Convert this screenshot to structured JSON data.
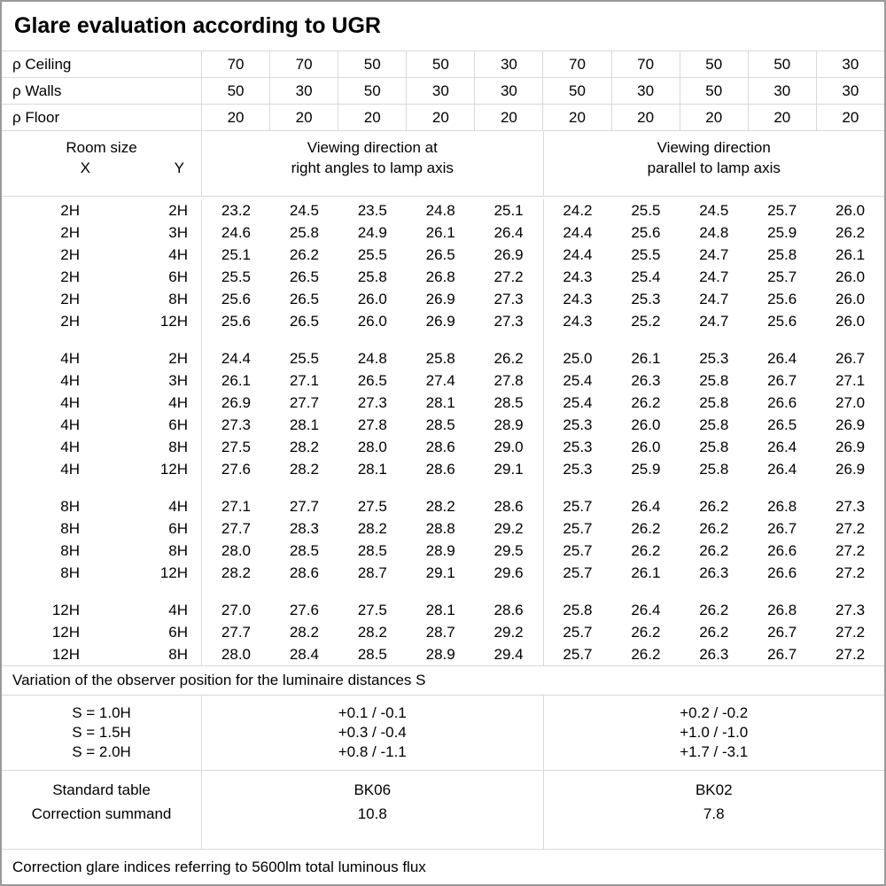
{
  "title": "Glare evaluation according to UGR",
  "colors": {
    "background": "#ffffff",
    "text": "#000000",
    "grid_line": "#d9d9d9",
    "frame": "#9a9a9a"
  },
  "reflectances": {
    "rows": [
      {
        "label": "ρ Ceiling",
        "values": [
          "70",
          "70",
          "50",
          "50",
          "30",
          "70",
          "70",
          "50",
          "50",
          "30"
        ]
      },
      {
        "label": "ρ Walls",
        "values": [
          "50",
          "30",
          "50",
          "30",
          "30",
          "50",
          "30",
          "50",
          "30",
          "30"
        ]
      },
      {
        "label": "ρ Floor",
        "values": [
          "20",
          "20",
          "20",
          "20",
          "20",
          "20",
          "20",
          "20",
          "20",
          "20"
        ]
      }
    ]
  },
  "header": {
    "room_size": "Room size",
    "x": "X",
    "y": "Y",
    "group1_line1": "Viewing direction at",
    "group1_line2": "right angles to lamp axis",
    "group2_line1": "Viewing direction",
    "group2_line2": "parallel to lamp axis"
  },
  "ugr_table": {
    "blocks": [
      {
        "rows": [
          {
            "x": "2H",
            "y": "2H",
            "v": [
              "23.2",
              "24.5",
              "23.5",
              "24.8",
              "25.1",
              "24.2",
              "25.5",
              "24.5",
              "25.7",
              "26.0"
            ]
          },
          {
            "x": "2H",
            "y": "3H",
            "v": [
              "24.6",
              "25.8",
              "24.9",
              "26.1",
              "26.4",
              "24.4",
              "25.6",
              "24.8",
              "25.9",
              "26.2"
            ]
          },
          {
            "x": "2H",
            "y": "4H",
            "v": [
              "25.1",
              "26.2",
              "25.5",
              "26.5",
              "26.9",
              "24.4",
              "25.5",
              "24.7",
              "25.8",
              "26.1"
            ]
          },
          {
            "x": "2H",
            "y": "6H",
            "v": [
              "25.5",
              "26.5",
              "25.8",
              "26.8",
              "27.2",
              "24.3",
              "25.4",
              "24.7",
              "25.7",
              "26.0"
            ]
          },
          {
            "x": "2H",
            "y": "8H",
            "v": [
              "25.6",
              "26.5",
              "26.0",
              "26.9",
              "27.3",
              "24.3",
              "25.3",
              "24.7",
              "25.6",
              "26.0"
            ]
          },
          {
            "x": "2H",
            "y": "12H",
            "v": [
              "25.6",
              "26.5",
              "26.0",
              "26.9",
              "27.3",
              "24.3",
              "25.2",
              "24.7",
              "25.6",
              "26.0"
            ]
          }
        ]
      },
      {
        "rows": [
          {
            "x": "4H",
            "y": "2H",
            "v": [
              "24.4",
              "25.5",
              "24.8",
              "25.8",
              "26.2",
              "25.0",
              "26.1",
              "25.3",
              "26.4",
              "26.7"
            ]
          },
          {
            "x": "4H",
            "y": "3H",
            "v": [
              "26.1",
              "27.1",
              "26.5",
              "27.4",
              "27.8",
              "25.4",
              "26.3",
              "25.8",
              "26.7",
              "27.1"
            ]
          },
          {
            "x": "4H",
            "y": "4H",
            "v": [
              "26.9",
              "27.7",
              "27.3",
              "28.1",
              "28.5",
              "25.4",
              "26.2",
              "25.8",
              "26.6",
              "27.0"
            ]
          },
          {
            "x": "4H",
            "y": "6H",
            "v": [
              "27.3",
              "28.1",
              "27.8",
              "28.5",
              "28.9",
              "25.3",
              "26.0",
              "25.8",
              "26.5",
              "26.9"
            ]
          },
          {
            "x": "4H",
            "y": "8H",
            "v": [
              "27.5",
              "28.2",
              "28.0",
              "28.6",
              "29.0",
              "25.3",
              "26.0",
              "25.8",
              "26.4",
              "26.9"
            ]
          },
          {
            "x": "4H",
            "y": "12H",
            "v": [
              "27.6",
              "28.2",
              "28.1",
              "28.6",
              "29.1",
              "25.3",
              "25.9",
              "25.8",
              "26.4",
              "26.9"
            ]
          }
        ]
      },
      {
        "rows": [
          {
            "x": "8H",
            "y": "4H",
            "v": [
              "27.1",
              "27.7",
              "27.5",
              "28.2",
              "28.6",
              "25.7",
              "26.4",
              "26.2",
              "26.8",
              "27.3"
            ]
          },
          {
            "x": "8H",
            "y": "6H",
            "v": [
              "27.7",
              "28.3",
              "28.2",
              "28.8",
              "29.2",
              "25.7",
              "26.2",
              "26.2",
              "26.7",
              "27.2"
            ]
          },
          {
            "x": "8H",
            "y": "8H",
            "v": [
              "28.0",
              "28.5",
              "28.5",
              "28.9",
              "29.5",
              "25.7",
              "26.2",
              "26.2",
              "26.6",
              "27.2"
            ]
          },
          {
            "x": "8H",
            "y": "12H",
            "v": [
              "28.2",
              "28.6",
              "28.7",
              "29.1",
              "29.6",
              "25.7",
              "26.1",
              "26.3",
              "26.6",
              "27.2"
            ]
          }
        ]
      },
      {
        "rows": [
          {
            "x": "12H",
            "y": "4H",
            "v": [
              "27.0",
              "27.6",
              "27.5",
              "28.1",
              "28.6",
              "25.8",
              "26.4",
              "26.2",
              "26.8",
              "27.3"
            ]
          },
          {
            "x": "12H",
            "y": "6H",
            "v": [
              "27.7",
              "28.2",
              "28.2",
              "28.7",
              "29.2",
              "25.7",
              "26.2",
              "26.2",
              "26.7",
              "27.2"
            ]
          },
          {
            "x": "12H",
            "y": "8H",
            "v": [
              "28.0",
              "28.4",
              "28.5",
              "28.9",
              "29.4",
              "25.7",
              "26.2",
              "26.3",
              "26.7",
              "27.2"
            ]
          }
        ]
      }
    ]
  },
  "variation_note": "Variation of the observer position for the luminaire distances S",
  "spacing_rows": [
    {
      "label": "S = 1.0H",
      "right_angles": "+0.1 / -0.1",
      "parallel": "+0.2 / -0.2"
    },
    {
      "label": "S = 1.5H",
      "right_angles": "+0.3 / -0.4",
      "parallel": "+1.0 / -1.0"
    },
    {
      "label": "S = 2.0H",
      "right_angles": "+0.8 / -1.1",
      "parallel": "+1.7 / -3.1"
    }
  ],
  "summary": {
    "standard_table_label": "Standard table",
    "correction_summand_label": "Correction summand",
    "standard_table": {
      "right_angles": "BK06",
      "parallel": "BK02"
    },
    "correction_summand": {
      "right_angles": "10.8",
      "parallel": "7.8"
    }
  },
  "footer_note": "Correction glare indices referring to 5600lm total luminous flux"
}
